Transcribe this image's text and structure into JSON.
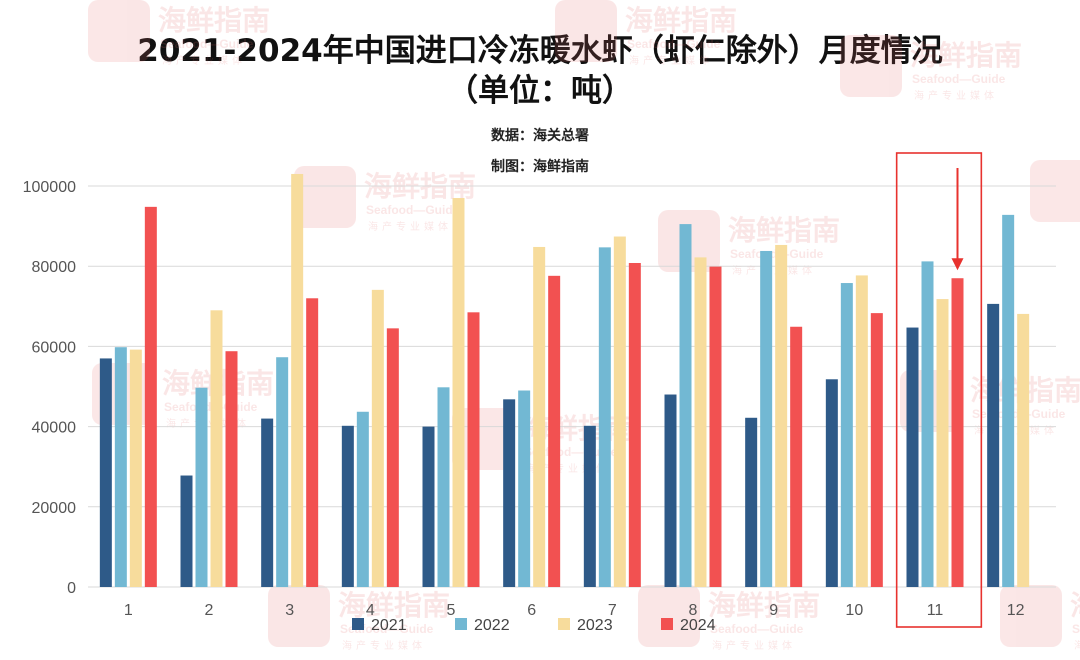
{
  "title_line1": "2021-2024年中国进口冷冻暖水虾（虾仁除外）月度情况",
  "title_line2": "（单位：吨）",
  "credit_source": "数据：海关总署",
  "credit_maker": "制图：海鲜指南",
  "chart_data": {
    "type": "bar",
    "title": "2021-2024年中国进口冷冻暖水虾（虾仁除外）月度情况（单位：吨）",
    "xlabel": "",
    "ylabel": "",
    "ylim": [
      0,
      100000
    ],
    "yticks": [
      0,
      20000,
      40000,
      60000,
      80000,
      100000
    ],
    "grid": true,
    "legend_position": "bottom",
    "categories": [
      "1",
      "2",
      "3",
      "4",
      "5",
      "6",
      "7",
      "8",
      "9",
      "10",
      "11",
      "12"
    ],
    "highlight_category": "11",
    "series": [
      {
        "name": "2021",
        "color": "#2e5a88",
        "values": [
          57000,
          27800,
          42000,
          40200,
          40000,
          46800,
          40200,
          48000,
          42200,
          51800,
          64700,
          70600
        ]
      },
      {
        "name": "2022",
        "color": "#72b8d3",
        "values": [
          59800,
          49700,
          57300,
          43700,
          49800,
          49000,
          84700,
          90500,
          83800,
          75800,
          81200,
          92800
        ]
      },
      {
        "name": "2023",
        "color": "#f7dc9c",
        "values": [
          59200,
          69000,
          103000,
          74100,
          97000,
          84800,
          87400,
          82200,
          85300,
          77700,
          71800,
          68100
        ]
      },
      {
        "name": "2024",
        "color": "#f25151",
        "values": [
          94800,
          58800,
          72000,
          64500,
          68500,
          77600,
          80800,
          79900,
          64900,
          68300,
          77000,
          null
        ]
      }
    ]
  },
  "watermark": {
    "brand_cn": "海鲜指南",
    "brand_en": "Seafood—Guide",
    "tagline": "海产专业媒体",
    "color": "#e66a6a"
  },
  "highlight_color": "#e8322e"
}
